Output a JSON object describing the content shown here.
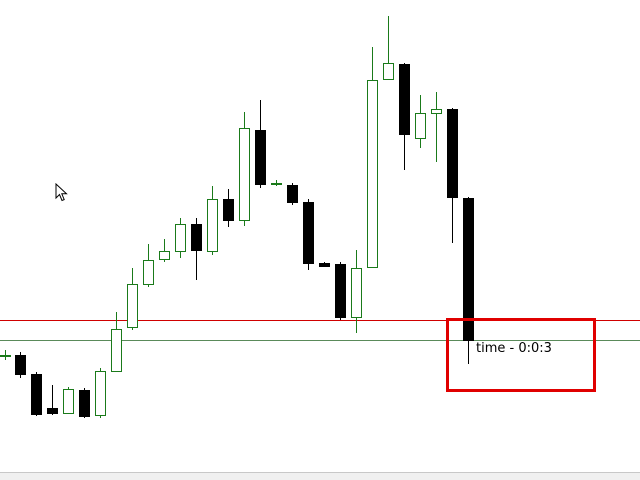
{
  "timer": {
    "label": "time - 0:0:3"
  },
  "colors": {
    "background": "#ffffff",
    "bull_candle_outline": "#1a7a1a",
    "bull_candle_fill": "#ffffff",
    "bear_candle": "#000000",
    "price_line_red": "#d00000",
    "price_line_green": "#2e7d32",
    "highlight_box": "#e00000"
  },
  "cursor": {
    "icon": "mouse-pointer-icon"
  }
}
